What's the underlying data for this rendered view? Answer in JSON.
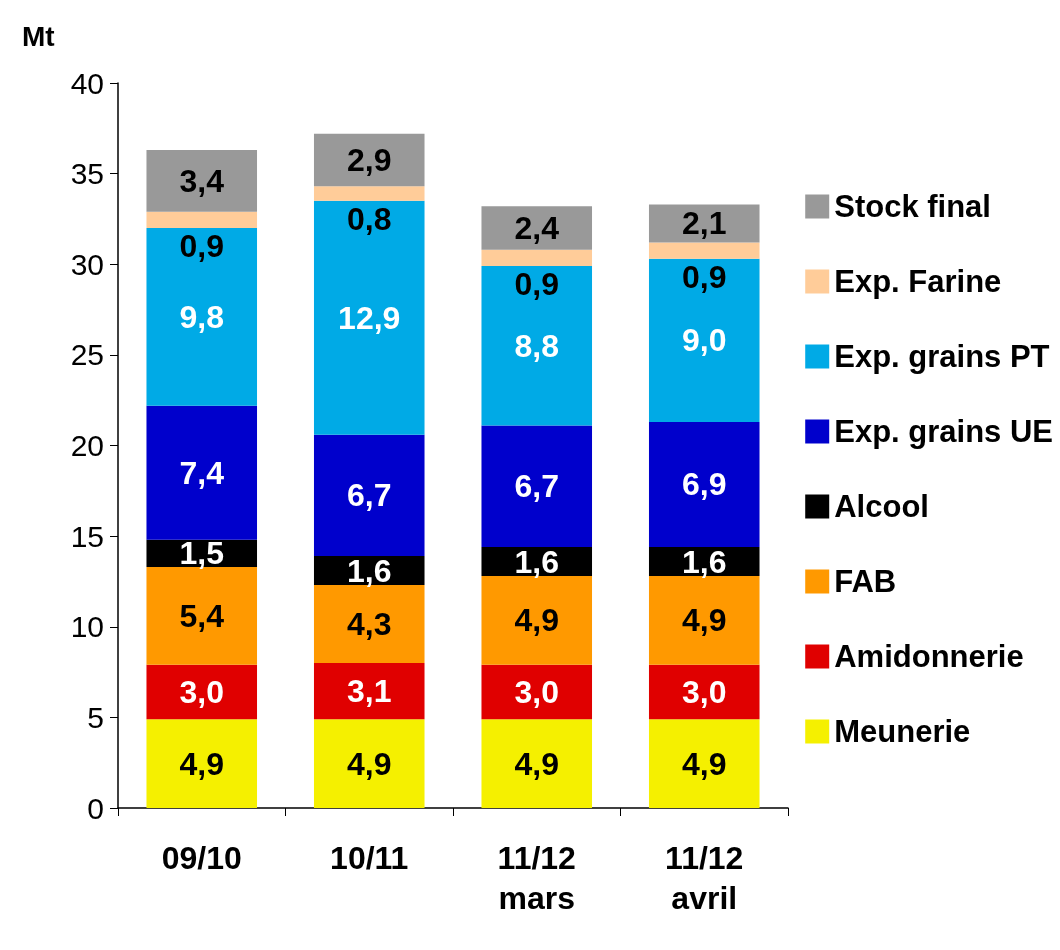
{
  "chart_data": {
    "type": "bar",
    "stacked": true,
    "ylabel": "Mt",
    "categories": [
      "09/10",
      "10/11",
      "11/12 mars",
      "11/12 avril"
    ],
    "ylim": [
      0,
      40
    ],
    "yticks": [
      0,
      5,
      10,
      15,
      20,
      25,
      30,
      35,
      40
    ],
    "grid": false,
    "legend": "right",
    "series": [
      {
        "name": "Meunerie",
        "color": "#f5f000",
        "values": [
          4.9,
          4.9,
          4.9,
          4.9
        ],
        "value_labels": [
          "4,9",
          "4,9",
          "4,9",
          "4,9"
        ]
      },
      {
        "name": "Amidonnerie",
        "color": "#e00000",
        "values": [
          3.0,
          3.1,
          3.0,
          3.0
        ],
        "value_labels": [
          "3,0",
          "3,1",
          "3,0",
          "3,0"
        ]
      },
      {
        "name": "FAB",
        "color": "#ff9900",
        "values": [
          5.4,
          4.3,
          4.9,
          4.9
        ],
        "value_labels": [
          "5,4",
          "4,3",
          "4,9",
          "4,9"
        ]
      },
      {
        "name": "Alcool",
        "color": "#000000",
        "values": [
          1.5,
          1.6,
          1.6,
          1.6
        ],
        "value_labels": [
          "1,5",
          "1,6",
          "1,6",
          "1,6"
        ]
      },
      {
        "name": "Exp. grains UE",
        "color": "#0000cc",
        "values": [
          7.4,
          6.7,
          6.7,
          6.9
        ],
        "value_labels": [
          "7,4",
          "6,7",
          "6,7",
          "6,9"
        ]
      },
      {
        "name": "Exp. grains PT",
        "color": "#00aae6",
        "values": [
          9.8,
          12.9,
          8.8,
          9.0
        ],
        "value_labels": [
          "9,8",
          "12,9",
          "8,8",
          "9,0"
        ]
      },
      {
        "name": "Exp. Farine",
        "color": "#ffcc99",
        "values": [
          0.9,
          0.8,
          0.9,
          0.9
        ],
        "value_labels": [
          "0,9",
          "0,8",
          "0,9",
          "0,9"
        ]
      },
      {
        "name": "Stock final",
        "color": "#999999",
        "values": [
          3.4,
          2.9,
          2.4,
          2.1
        ],
        "value_labels": [
          "3,4",
          "2,9",
          "2,4",
          "2,1"
        ]
      }
    ]
  }
}
